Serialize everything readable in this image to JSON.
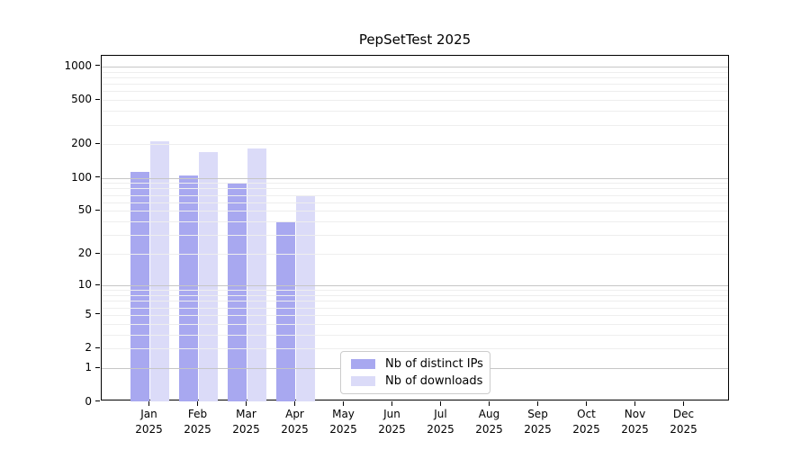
{
  "title": "PepSetTest 2025",
  "chart_data": {
    "type": "bar",
    "title": "PepSetTest 2025",
    "x_categories": [
      "Jan",
      "Feb",
      "Mar",
      "Apr",
      "May",
      "Jun",
      "Jul",
      "Aug",
      "Sep",
      "Oct",
      "Nov",
      "Dec"
    ],
    "x_year": "2025",
    "series": [
      {
        "name": "Nb of distinct IPs",
        "color": "#a8a8f0",
        "values": [
          114,
          105,
          91,
          40,
          0,
          0,
          0,
          0,
          0,
          0,
          0,
          0
        ]
      },
      {
        "name": "Nb of downloads",
        "color": "#dbdbf8",
        "values": [
          212,
          171,
          183,
          68,
          0,
          0,
          0,
          0,
          0,
          0,
          0,
          0
        ]
      }
    ],
    "y_scale": "log10(1+v)",
    "y_ticks": [
      0,
      1,
      2,
      5,
      10,
      20,
      50,
      100,
      200,
      500,
      1000
    ],
    "y_major_gridlines": [
      1,
      10,
      100,
      1000
    ],
    "ylim": [
      0,
      1200
    ],
    "grid": "horizontal",
    "legend_position": "bottom-center-inside",
    "colors": {
      "minor_grid": "#eeeeee",
      "major_grid": "#c6c6c6",
      "axis": "#000000",
      "background": "#ffffff",
      "text": "#000000"
    }
  }
}
